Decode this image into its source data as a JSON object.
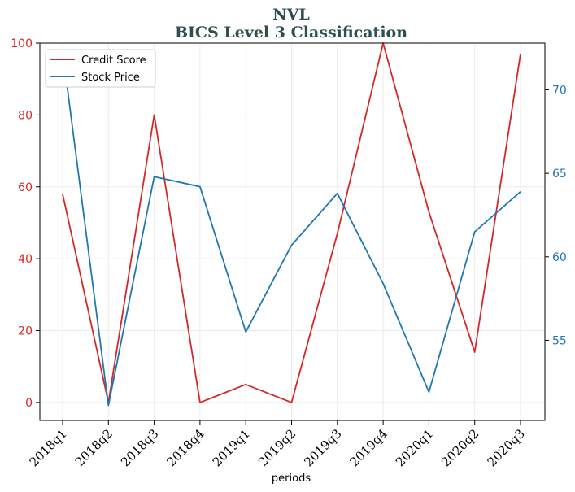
{
  "chart_data": {
    "type": "line",
    "title": "NVL",
    "subtitle": "BICS Level 3 Classification",
    "xlabel": "periods",
    "categories": [
      "2018q1",
      "2018q2",
      "2018q3",
      "2018q4",
      "2019q1",
      "2019q2",
      "2019q3",
      "2019q4",
      "2020q1",
      "2020q2",
      "2020q3"
    ],
    "y_left": {
      "ylim": [
        -5,
        100
      ],
      "ticks": [
        0,
        20,
        40,
        60,
        80,
        100
      ],
      "color": "#d62728"
    },
    "y_right": {
      "ylim": [
        50.2,
        72.8
      ],
      "ticks": [
        55,
        60,
        65,
        70
      ],
      "color": "#1f77b4"
    },
    "series": [
      {
        "name": "Credit Score",
        "axis": "left",
        "color": "#d62728",
        "values": [
          58,
          0,
          80,
          0,
          5,
          0,
          47,
          100,
          53,
          14,
          97
        ]
      },
      {
        "name": "Stock Price",
        "axis": "right",
        "color": "#1f77b4",
        "values": [
          72.3,
          51.1,
          64.8,
          64.2,
          55.5,
          60.7,
          63.8,
          58.4,
          51.9,
          61.5,
          63.9
        ]
      }
    ],
    "legend_position": "top-left",
    "grid": true
  }
}
